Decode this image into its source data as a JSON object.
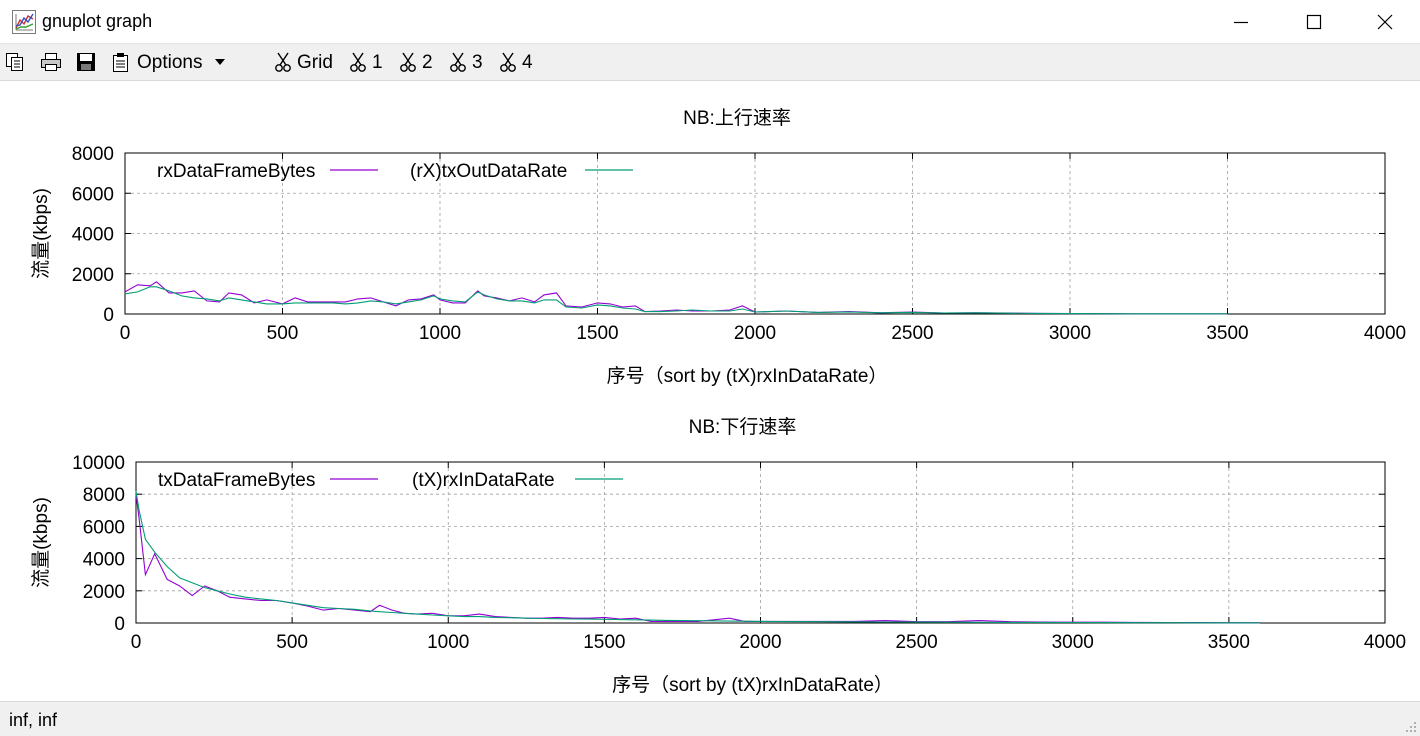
{
  "window": {
    "title": "gnuplot graph"
  },
  "icons": {
    "app": "gnuplot-graph-icon",
    "minimize": "minimize-icon",
    "maximize": "maximize-icon",
    "close": "close-icon",
    "copy": "copy-icon",
    "print": "print-icon",
    "save": "save-icon",
    "options": "options-icon",
    "toggle": "scissors-icon",
    "dropdown": "caret-down-icon"
  },
  "toolbar": {
    "options_label": "Options",
    "toggles": [
      {
        "label": "Grid"
      },
      {
        "label": "1"
      },
      {
        "label": "2"
      },
      {
        "label": "3"
      },
      {
        "label": "4"
      }
    ]
  },
  "status": {
    "text": "inf,  inf"
  },
  "colors": {
    "series1": "#9400d3",
    "series2": "#009e73",
    "grid": "#a0a0a0"
  },
  "chart_data": [
    {
      "type": "line",
      "title": "NB:上行速率",
      "xlabel": "序号（sort by (tX)rxInDataRate）",
      "ylabel": "流量(kbps)",
      "xlim": [
        0,
        4000
      ],
      "ylim": [
        0,
        8000
      ],
      "xticks": [
        0,
        500,
        1000,
        1500,
        2000,
        2500,
        3000,
        3500,
        4000
      ],
      "yticks": [
        0,
        2000,
        4000,
        6000,
        8000
      ],
      "grid": true,
      "legend": "top-left",
      "series": [
        {
          "name": "rxDataFrameBytes",
          "x": [
            0,
            40,
            80,
            100,
            140,
            180,
            220,
            260,
            300,
            330,
            370,
            410,
            450,
            500,
            540,
            580,
            620,
            660,
            700,
            740,
            780,
            820,
            860,
            900,
            940,
            980,
            1000,
            1040,
            1080,
            1120,
            1140,
            1180,
            1220,
            1260,
            1300,
            1330,
            1370,
            1400,
            1450,
            1500,
            1540,
            1580,
            1620,
            1650,
            1700,
            1750,
            1800,
            1860,
            1920,
            1960,
            2000,
            2100,
            2200,
            2300,
            2400,
            2500,
            2600,
            2700,
            2800,
            2900,
            3000,
            3100,
            3200,
            3300,
            3400,
            3500
          ],
          "y": [
            1100,
            1450,
            1400,
            1600,
            1050,
            1050,
            1150,
            650,
            600,
            1050,
            950,
            550,
            700,
            500,
            800,
            600,
            600,
            600,
            600,
            750,
            800,
            600,
            400,
            700,
            750,
            950,
            700,
            550,
            550,
            1150,
            900,
            800,
            650,
            800,
            600,
            950,
            1050,
            400,
            350,
            550,
            500,
            350,
            400,
            120,
            150,
            200,
            150,
            150,
            200,
            400,
            100,
            150,
            80,
            120,
            60,
            100,
            50,
            60,
            50,
            30,
            20,
            20,
            10,
            10,
            10,
            10
          ]
        },
        {
          "name": "(rX)txOutDataRate",
          "x": [
            0,
            40,
            80,
            100,
            140,
            180,
            220,
            260,
            300,
            330,
            370,
            410,
            450,
            500,
            540,
            580,
            620,
            660,
            700,
            740,
            780,
            820,
            860,
            900,
            940,
            980,
            1000,
            1040,
            1080,
            1120,
            1140,
            1180,
            1220,
            1260,
            1300,
            1330,
            1370,
            1400,
            1450,
            1500,
            1540,
            1580,
            1620,
            1650,
            1700,
            1750,
            1800,
            1860,
            1920,
            1960,
            2000,
            2100,
            2200,
            2300,
            2400,
            2500,
            2600,
            2700,
            2800,
            2900,
            3000,
            3100,
            3200,
            3300,
            3400,
            3500
          ],
          "y": [
            1000,
            1100,
            1350,
            1350,
            1150,
            900,
            800,
            750,
            650,
            800,
            700,
            600,
            500,
            500,
            550,
            550,
            550,
            550,
            500,
            550,
            650,
            600,
            500,
            600,
            700,
            900,
            750,
            650,
            600,
            1100,
            950,
            750,
            650,
            650,
            550,
            700,
            700,
            350,
            300,
            450,
            400,
            300,
            250,
            120,
            120,
            150,
            200,
            150,
            150,
            250,
            100,
            150,
            80,
            100,
            60,
            80,
            50,
            60,
            40,
            30,
            20,
            15,
            10,
            10,
            10,
            10
          ]
        }
      ]
    },
    {
      "type": "line",
      "title": "NB:下行速率",
      "xlabel": "序号（sort by (tX)rxInDataRate）",
      "ylabel": "流量(kbps)",
      "xlim": [
        0,
        4000
      ],
      "ylim": [
        0,
        10000
      ],
      "xticks": [
        0,
        500,
        1000,
        1500,
        2000,
        2500,
        3000,
        3500,
        4000
      ],
      "yticks": [
        0,
        2000,
        4000,
        6000,
        8000,
        10000
      ],
      "grid": true,
      "legend": "top-left",
      "series": [
        {
          "name": "txDataFrameBytes",
          "x": [
            0,
            10,
            30,
            60,
            100,
            140,
            180,
            220,
            260,
            300,
            350,
            400,
            450,
            500,
            550,
            600,
            650,
            700,
            750,
            780,
            820,
            860,
            900,
            950,
            1000,
            1050,
            1100,
            1150,
            1200,
            1250,
            1300,
            1350,
            1400,
            1450,
            1500,
            1550,
            1600,
            1650,
            1700,
            1800,
            1900,
            1950,
            2000,
            2100,
            2200,
            2300,
            2400,
            2500,
            2600,
            2700,
            2800,
            2900,
            3000,
            3100,
            3200,
            3300,
            3400,
            3500,
            3600
          ],
          "y": [
            8000,
            6500,
            3000,
            4300,
            2700,
            2300,
            1700,
            2300,
            2000,
            1600,
            1500,
            1400,
            1400,
            1250,
            1050,
            800,
            900,
            800,
            700,
            1100,
            800,
            600,
            550,
            600,
            450,
            450,
            550,
            400,
            350,
            300,
            300,
            350,
            300,
            300,
            350,
            250,
            300,
            100,
            100,
            100,
            300,
            100,
            100,
            100,
            100,
            100,
            150,
            80,
            80,
            150,
            80,
            60,
            50,
            50,
            40,
            30,
            30,
            20,
            20
          ]
        },
        {
          "name": "(tX)rxInDataRate",
          "x": [
            0,
            10,
            30,
            60,
            100,
            140,
            180,
            220,
            260,
            300,
            350,
            400,
            450,
            500,
            550,
            600,
            650,
            700,
            750,
            780,
            820,
            860,
            900,
            950,
            1000,
            1050,
            1100,
            1150,
            1200,
            1250,
            1300,
            1350,
            1400,
            1450,
            1500,
            1550,
            1600,
            1650,
            1700,
            1800,
            1900,
            1950,
            2000,
            2100,
            2200,
            2300,
            2400,
            2500,
            2600,
            2700,
            2800,
            2900,
            3000,
            3100,
            3200,
            3300,
            3400,
            3500,
            3600
          ],
          "y": [
            8200,
            7000,
            5200,
            4400,
            3500,
            2800,
            2500,
            2200,
            2000,
            1800,
            1600,
            1500,
            1400,
            1250,
            1100,
            950,
            900,
            850,
            750,
            700,
            650,
            600,
            550,
            500,
            450,
            400,
            400,
            350,
            330,
            300,
            280,
            270,
            250,
            240,
            230,
            210,
            200,
            180,
            160,
            140,
            120,
            110,
            100,
            90,
            80,
            70,
            60,
            55,
            50,
            45,
            40,
            35,
            30,
            25,
            20,
            18,
            15,
            12,
            10
          ]
        }
      ]
    }
  ]
}
